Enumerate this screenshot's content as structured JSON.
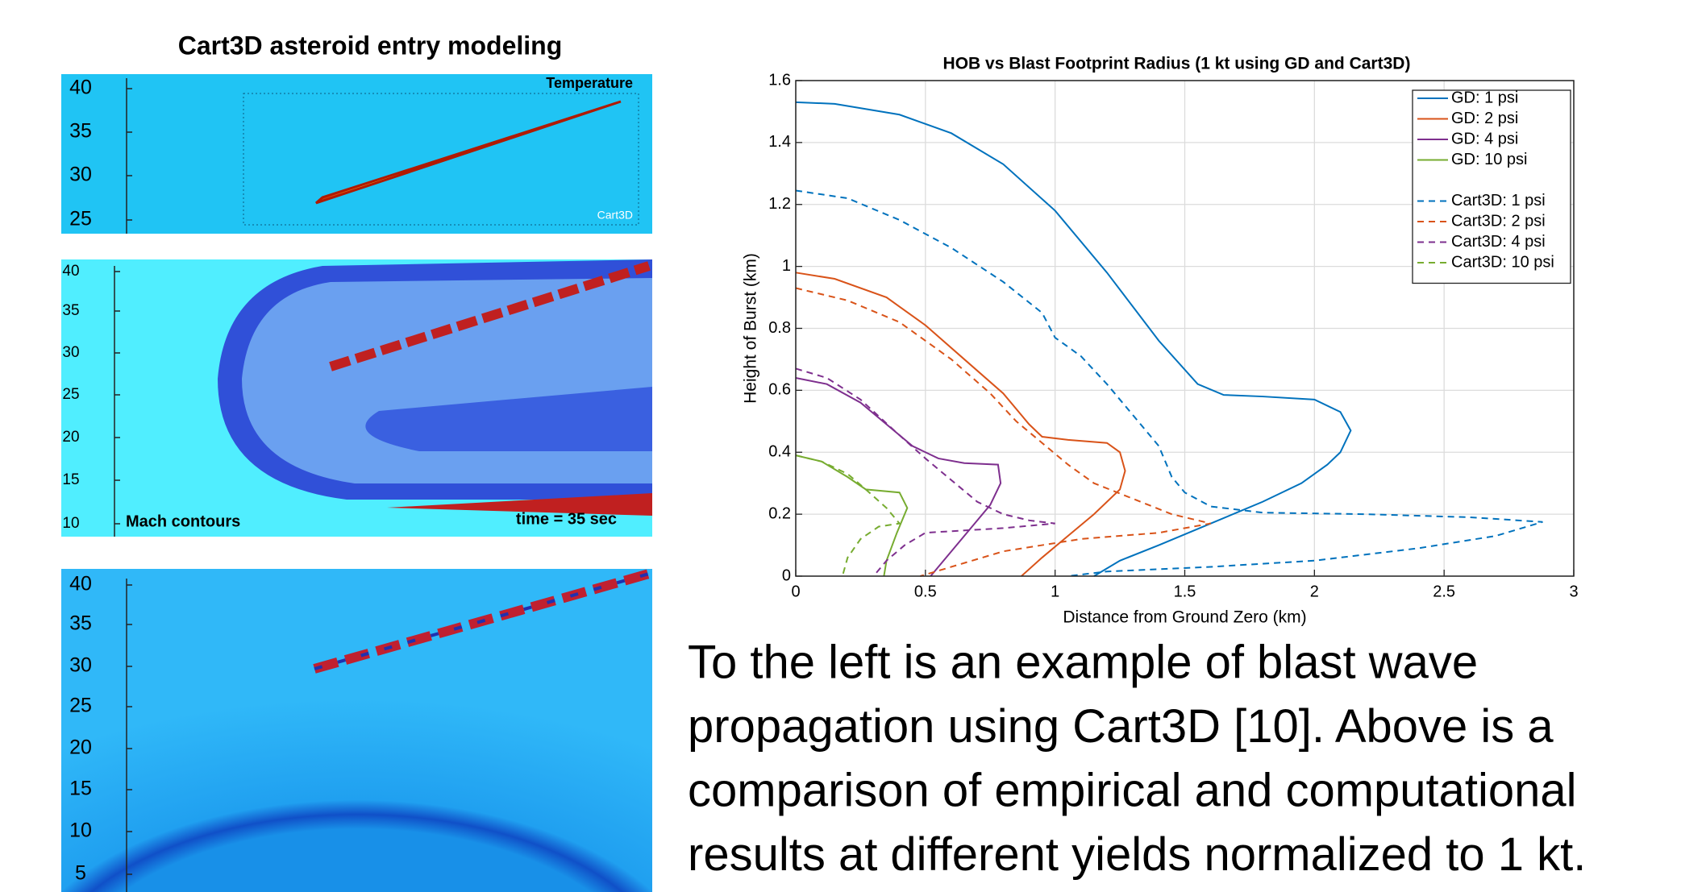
{
  "left_panel": {
    "title": "Cart3D asteroid entry modeling",
    "panels": [
      {
        "yticks": [
          40,
          35,
          30,
          25
        ],
        "labels": [
          "Temperature",
          "Cart3D"
        ]
      },
      {
        "yticks": [
          40,
          35,
          30,
          25,
          20,
          15,
          10
        ],
        "labels": [
          "Mach contours",
          "time = 35 sec"
        ]
      },
      {
        "yticks": [
          40,
          35,
          30,
          25,
          20,
          15,
          10,
          5
        ],
        "labels": []
      }
    ]
  },
  "chart_data": {
    "type": "line",
    "title": "HOB vs Blast Footprint Radius (1 kt using GD and Cart3D)",
    "x_label": "Distance from Ground Zero (km)",
    "y_label": "Height of Burst (km)",
    "xlim": [
      0,
      3
    ],
    "xticks": [
      0,
      0.5,
      1,
      1.5,
      2,
      2.5,
      3
    ],
    "ylim": [
      0,
      1.6
    ],
    "yticks": [
      0,
      0.2,
      0.4,
      0.6,
      0.8,
      1,
      1.2,
      1.4,
      1.6
    ],
    "grid": true,
    "legend": "northeast",
    "series": [
      {
        "name": "GD: 1 psi",
        "color": "#0072bd",
        "dash": false,
        "x": [
          0,
          0.15,
          0.4,
          0.6,
          0.8,
          1.0,
          1.2,
          1.4,
          1.55,
          1.65,
          1.8,
          2.0,
          2.1,
          2.14,
          2.1,
          2.05,
          1.95,
          1.8,
          1.6,
          1.4,
          1.25,
          1.15
        ],
        "values": [
          1.53,
          1.525,
          1.49,
          1.43,
          1.33,
          1.18,
          0.98,
          0.76,
          0.62,
          0.585,
          0.58,
          0.57,
          0.53,
          0.47,
          0.4,
          0.36,
          0.3,
          0.24,
          0.17,
          0.1,
          0.05,
          0
        ]
      },
      {
        "name": "GD: 2 psi",
        "color": "#d95319",
        "dash": false,
        "x": [
          0,
          0.15,
          0.35,
          0.5,
          0.65,
          0.8,
          0.9,
          0.95,
          1.05,
          1.2,
          1.25,
          1.27,
          1.25,
          1.15,
          1.05,
          0.95,
          0.87
        ],
        "values": [
          0.98,
          0.96,
          0.9,
          0.81,
          0.7,
          0.59,
          0.49,
          0.45,
          0.44,
          0.43,
          0.4,
          0.34,
          0.28,
          0.2,
          0.13,
          0.06,
          0
        ]
      },
      {
        "name": "GD: 4 psi",
        "color": "#7e2f8e",
        "dash": false,
        "x": [
          0,
          0.12,
          0.25,
          0.35,
          0.45,
          0.55,
          0.65,
          0.78,
          0.79,
          0.75,
          0.68,
          0.6,
          0.52
        ],
        "values": [
          0.64,
          0.62,
          0.56,
          0.49,
          0.42,
          0.38,
          0.365,
          0.36,
          0.3,
          0.23,
          0.16,
          0.08,
          0
        ]
      },
      {
        "name": "GD: 10 psi",
        "color": "#77ac30",
        "dash": false,
        "x": [
          0,
          0.1,
          0.2,
          0.27,
          0.4,
          0.43,
          0.39,
          0.35,
          0.34
        ],
        "values": [
          0.39,
          0.37,
          0.32,
          0.28,
          0.27,
          0.22,
          0.14,
          0.05,
          0
        ]
      },
      {
        "name": "Cart3D: 1 psi",
        "color": "#0072bd",
        "dash": true,
        "x": [
          0,
          0.2,
          0.4,
          0.6,
          0.8,
          0.95,
          1.0,
          1.1,
          1.2,
          1.3,
          1.4,
          1.45,
          1.5,
          1.6,
          1.8,
          2.2,
          2.6,
          2.88,
          2.7,
          2.4,
          2.0,
          1.6,
          1.2,
          1.05
        ],
        "values": [
          1.245,
          1.22,
          1.15,
          1.06,
          0.95,
          0.85,
          0.77,
          0.71,
          0.62,
          0.52,
          0.42,
          0.32,
          0.27,
          0.225,
          0.205,
          0.2,
          0.19,
          0.175,
          0.13,
          0.09,
          0.05,
          0.03,
          0.015,
          0
        ]
      },
      {
        "name": "Cart3D: 2 psi",
        "color": "#d95319",
        "dash": true,
        "x": [
          0,
          0.2,
          0.4,
          0.6,
          0.75,
          0.85,
          0.95,
          1.05,
          1.15,
          1.3,
          1.45,
          1.6,
          1.4,
          1.1,
          0.8,
          0.6,
          0.48
        ],
        "values": [
          0.93,
          0.89,
          0.82,
          0.7,
          0.59,
          0.5,
          0.43,
          0.36,
          0.3,
          0.25,
          0.2,
          0.17,
          0.14,
          0.12,
          0.08,
          0.03,
          0
        ]
      },
      {
        "name": "Cart3D: 4 psi",
        "color": "#7e2f8e",
        "dash": true,
        "x": [
          0,
          0.12,
          0.25,
          0.38,
          0.5,
          0.6,
          0.7,
          0.8,
          0.9,
          1.0,
          0.8,
          0.5,
          0.42,
          0.35,
          0.3
        ],
        "values": [
          0.67,
          0.64,
          0.57,
          0.47,
          0.38,
          0.31,
          0.24,
          0.2,
          0.18,
          0.17,
          0.155,
          0.14,
          0.1,
          0.05,
          0
        ]
      },
      {
        "name": "Cart3D: 10 psi",
        "color": "#77ac30",
        "dash": true,
        "x": [
          0,
          0.1,
          0.2,
          0.27,
          0.35,
          0.4,
          0.32,
          0.25,
          0.2,
          0.18
        ],
        "values": [
          0.39,
          0.37,
          0.33,
          0.28,
          0.22,
          0.17,
          0.16,
          0.12,
          0.06,
          0
        ]
      }
    ]
  },
  "caption": {
    "lines": [
      "To the left is an example of blast wave",
      "propagation using Cart3D [10]. Above is a",
      "comparison of empirical and computational",
      "results at different yields normalized to 1 kt."
    ]
  }
}
